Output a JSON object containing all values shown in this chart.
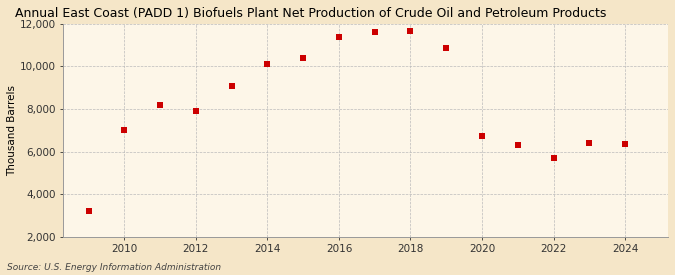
{
  "title": "Annual East Coast (PADD 1) Biofuels Plant Net Production of Crude Oil and Petroleum Products",
  "ylabel": "Thousand Barrels",
  "source": "Source: U.S. Energy Information Administration",
  "years": [
    2009,
    2010,
    2011,
    2012,
    2013,
    2014,
    2015,
    2016,
    2017,
    2018,
    2019,
    2020,
    2021,
    2022,
    2023,
    2024
  ],
  "values": [
    3200,
    7000,
    8200,
    7900,
    9100,
    10100,
    10400,
    11400,
    11600,
    11650,
    10850,
    6750,
    6300,
    5700,
    6400,
    6350
  ],
  "marker_color": "#cc0000",
  "marker": "s",
  "marker_size": 4,
  "outer_bg_color": "#f5e6c8",
  "plot_bg_color": "#fdf6e8",
  "grid_color": "#bbbbbb",
  "ylim": [
    2000,
    12000
  ],
  "yticks": [
    2000,
    4000,
    6000,
    8000,
    10000,
    12000
  ],
  "xlim": [
    2008.3,
    2025.2
  ],
  "xticks": [
    2010,
    2012,
    2014,
    2016,
    2018,
    2020,
    2022,
    2024
  ],
  "title_fontsize": 9.0,
  "label_fontsize": 7.5,
  "tick_fontsize": 7.5,
  "source_fontsize": 6.5
}
